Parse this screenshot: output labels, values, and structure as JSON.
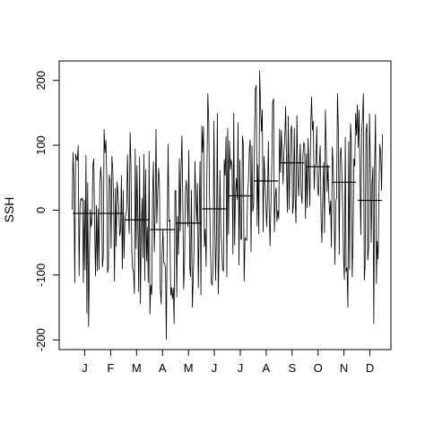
{
  "chart_data": {
    "type": "line",
    "title": "",
    "xlabel": "",
    "ylabel": "SSH",
    "ylim": [
      -215,
      230
    ],
    "yticks": [
      -200,
      -100,
      0,
      100,
      200
    ],
    "grid": false,
    "months": [
      {
        "label": "J",
        "mean": -5,
        "range": [
          -180,
          100
        ]
      },
      {
        "label": "F",
        "mean": -5,
        "range": [
          -110,
          125
        ]
      },
      {
        "label": "M",
        "mean": -15,
        "range": [
          -145,
          120
        ]
      },
      {
        "label": "A",
        "mean": -30,
        "range": [
          -200,
          125
        ]
      },
      {
        "label": "M",
        "mean": -20,
        "range": [
          -150,
          115
        ]
      },
      {
        "label": "J",
        "mean": 2,
        "range": [
          -130,
          180
        ]
      },
      {
        "label": "J",
        "mean": 22,
        "range": [
          -110,
          150
        ]
      },
      {
        "label": "A",
        "mean": 45,
        "range": [
          -55,
          215
        ]
      },
      {
        "label": "S",
        "mean": 73,
        "range": [
          -20,
          160
        ]
      },
      {
        "label": "O",
        "mean": 67,
        "range": [
          -50,
          175
        ]
      },
      {
        "label": "N",
        "mean": 43,
        "range": [
          -150,
          180
        ]
      },
      {
        "label": "D",
        "mean": 15,
        "range": [
          -175,
          180
        ]
      }
    ]
  }
}
